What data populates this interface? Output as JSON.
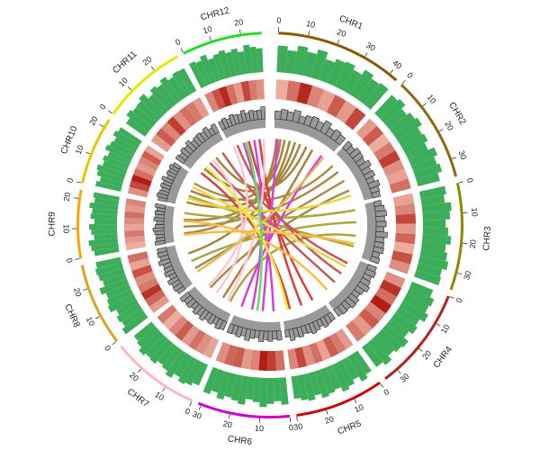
{
  "chart_data": {
    "type": "circos",
    "chromosomes": [
      {
        "name": "CHR1",
        "color": "#8b5a00",
        "length": 43,
        "ticks": [
          0,
          10,
          20,
          30,
          40
        ],
        "hist": [
          0.82,
          0.7,
          0.88,
          0.75,
          0.9,
          0.68,
          0.8,
          0.85,
          0.72,
          0.9,
          0.78,
          0.84
        ],
        "heat": [
          0.2,
          0.5,
          0.85,
          0.4,
          0.25,
          0.6,
          0.3,
          0.7
        ],
        "gray": [
          0.55,
          0.7,
          0.6,
          0.8,
          0.5,
          0.65,
          0.75,
          0.6,
          0.85,
          0.55,
          0.7,
          0.6
        ]
      },
      {
        "name": "CHR2",
        "color": "#8b6914",
        "length": 36,
        "ticks": [
          0,
          10,
          20,
          30
        ],
        "hist": [
          0.78,
          0.86,
          0.7,
          0.82,
          0.9,
          0.74,
          0.8,
          0.68,
          0.88,
          0.76,
          0.84,
          0.7
        ],
        "heat": [
          0.3,
          0.6,
          0.2,
          0.45,
          0.75,
          0.35,
          0.25,
          0.5
        ],
        "gray": [
          0.6,
          0.5,
          0.7,
          0.65,
          0.55,
          0.8,
          0.6,
          0.7,
          0.5,
          0.75,
          0.6,
          0.55
        ]
      },
      {
        "name": "CHR3",
        "color": "#8b8b00",
        "length": 36,
        "ticks": [
          0,
          10,
          20,
          30
        ],
        "hist": [
          0.8,
          0.72,
          0.9,
          0.84,
          0.7,
          0.78,
          0.88,
          0.74,
          0.82,
          0.9,
          0.76,
          0.8
        ],
        "heat": [
          0.25,
          0.4,
          0.7,
          0.3,
          0.55,
          0.2,
          0.65,
          0.35
        ],
        "gray": [
          0.5,
          0.65,
          0.75,
          0.6,
          0.7,
          0.55,
          0.8,
          0.6,
          0.65,
          0.7,
          0.5,
          0.6
        ]
      },
      {
        "name": "CHR4",
        "color": "#b22222",
        "length": 35,
        "ticks": [
          0,
          10,
          20,
          30
        ],
        "hist": [
          0.7,
          0.84,
          0.78,
          0.9,
          0.74,
          0.82,
          0.68,
          0.86,
          0.8,
          0.72,
          0.88,
          0.76
        ],
        "heat": [
          0.35,
          0.8,
          0.5,
          0.9,
          0.4,
          0.6,
          0.3,
          0.45
        ],
        "gray": [
          0.6,
          0.7,
          0.55,
          0.65,
          0.8,
          0.6,
          0.5,
          0.7,
          0.75,
          0.6,
          0.65,
          0.55
        ]
      },
      {
        "name": "CHR5",
        "color": "#cd0000",
        "length": 30,
        "ticks": [
          0,
          10,
          20,
          30
        ],
        "hist": [
          0.76,
          0.88,
          0.7,
          0.82,
          0.9,
          0.74,
          0.8,
          0.86,
          0.72,
          0.84,
          0.78,
          0.7
        ],
        "heat": [
          0.3,
          0.45,
          0.6,
          0.25,
          0.5,
          0.35,
          0.7,
          0.4
        ],
        "gray": [
          0.55,
          0.6,
          0.7,
          0.5,
          0.65,
          0.75,
          0.6,
          0.55,
          0.7,
          0.6,
          0.8,
          0.5
        ]
      },
      {
        "name": "CHR6",
        "color": "#cc00cc",
        "length": 31,
        "ticks": [
          0,
          10,
          20,
          30
        ],
        "hist": [
          0.84,
          0.72,
          0.8,
          0.9,
          0.76,
          0.7,
          0.88,
          0.8,
          0.74,
          0.86,
          0.7,
          0.82
        ],
        "heat": [
          0.5,
          0.75,
          0.9,
          0.4,
          0.3,
          0.6,
          0.55,
          0.35
        ],
        "gray": [
          0.65,
          0.55,
          0.7,
          0.6,
          0.75,
          0.5,
          0.6,
          0.8,
          0.55,
          0.7,
          0.6,
          0.65
        ]
      },
      {
        "name": "CHR7",
        "color": "#ffb6c1",
        "length": 30,
        "ticks": [
          0,
          10,
          20
        ],
        "hist": [
          0.7,
          0.8,
          0.86,
          0.74,
          0.9,
          0.78,
          0.72,
          0.84,
          0.8,
          0.88,
          0.76,
          0.7
        ],
        "heat": [
          0.25,
          0.35,
          0.5,
          0.3,
          0.6,
          0.4,
          0.2,
          0.45
        ],
        "gray": [
          0.6,
          0.7,
          0.5,
          0.65,
          0.55,
          0.75,
          0.6,
          0.7,
          0.5,
          0.65,
          0.6,
          0.7
        ]
      },
      {
        "name": "CHR8",
        "color": "#daa520",
        "length": 28,
        "ticks": [
          0,
          10,
          20
        ],
        "hist": [
          0.86,
          0.74,
          0.8,
          0.7,
          0.88,
          0.82,
          0.76,
          0.9,
          0.72,
          0.8,
          0.84,
          0.78
        ],
        "heat": [
          0.3,
          0.55,
          0.8,
          0.45,
          0.35,
          0.65,
          0.25,
          0.5
        ],
        "gray": [
          0.55,
          0.65,
          0.6,
          0.75,
          0.5,
          0.7,
          0.6,
          0.55,
          0.8,
          0.6,
          0.7,
          0.65
        ]
      },
      {
        "name": "CHR9",
        "color": "#ffa500",
        "length": 23,
        "ticks": [
          0,
          10,
          20
        ],
        "hist": [
          0.76,
          0.84,
          0.9,
          0.72,
          0.8,
          0.86,
          0.7,
          0.82,
          0.78,
          0.88,
          0.74,
          0.8
        ],
        "heat": [
          0.2,
          0.3,
          0.45,
          0.25,
          0.35,
          0.5,
          0.3,
          0.4
        ],
        "gray": [
          0.7,
          0.6,
          0.55,
          0.65,
          0.75,
          0.6,
          0.5,
          0.7,
          0.6,
          0.65,
          0.55,
          0.7
        ]
      },
      {
        "name": "CHR10",
        "color": "#e6c800",
        "length": 23,
        "ticks": [
          0,
          10,
          20
        ],
        "hist": [
          0.8,
          0.7,
          0.84,
          0.9,
          0.76,
          0.82,
          0.72,
          0.88,
          0.8,
          0.74,
          0.86,
          0.78
        ],
        "heat": [
          0.35,
          0.7,
          0.9,
          0.5,
          0.3,
          0.4,
          0.6,
          0.25
        ],
        "gray": [
          0.6,
          0.75,
          0.65,
          0.55,
          0.7,
          0.6,
          0.8,
          0.5,
          0.65,
          0.6,
          0.7,
          0.55
        ]
      },
      {
        "name": "CHR11",
        "color": "#e8e800",
        "length": 29,
        "ticks": [
          0,
          10,
          20
        ],
        "hist": [
          0.72,
          0.86,
          0.78,
          0.8,
          0.9,
          0.7,
          0.84,
          0.76,
          0.88,
          0.74,
          0.82,
          0.8
        ],
        "heat": [
          0.3,
          0.6,
          0.4,
          0.75,
          0.35,
          0.5,
          0.45,
          0.3
        ],
        "gray": [
          0.65,
          0.55,
          0.7,
          0.6,
          0.8,
          0.55,
          0.65,
          0.7,
          0.6,
          0.75,
          0.5,
          0.65
        ]
      },
      {
        "name": "CHR12",
        "color": "#22dd22",
        "length": 27,
        "ticks": [
          0,
          10,
          20
        ],
        "hist": [
          0.84,
          0.78,
          0.9,
          0.72,
          0.8,
          0.86,
          0.76,
          0.82,
          0.7,
          0.88,
          0.8,
          0.74
        ],
        "heat": [
          0.4,
          0.65,
          0.85,
          0.5,
          0.3,
          0.7,
          0.45,
          0.35
        ],
        "gray": [
          0.6,
          0.7,
          0.55,
          0.75,
          0.65,
          0.6,
          0.8,
          0.55,
          0.7,
          0.6,
          0.65,
          0.85
        ]
      }
    ],
    "links": [
      [
        0,
        2,
        8,
        5
      ],
      [
        0,
        5,
        9,
        12
      ],
      [
        0,
        8,
        10,
        6
      ],
      [
        0,
        12,
        7,
        20
      ],
      [
        0,
        16,
        8,
        15
      ],
      [
        0,
        20,
        9,
        3
      ],
      [
        0,
        25,
        10,
        18
      ],
      [
        0,
        30,
        6,
        10
      ],
      [
        1,
        4,
        9,
        18
      ],
      [
        1,
        10,
        8,
        10
      ],
      [
        1,
        18,
        7,
        8
      ],
      [
        1,
        26,
        6,
        22
      ],
      [
        2,
        3,
        8,
        20
      ],
      [
        2,
        12,
        7,
        14
      ],
      [
        2,
        22,
        6,
        4
      ],
      [
        2,
        30,
        9,
        8
      ],
      [
        3,
        5,
        10,
        24
      ],
      [
        3,
        14,
        11,
        5
      ],
      [
        3,
        22,
        10,
        12
      ],
      [
        4,
        6,
        11,
        14
      ],
      [
        4,
        15,
        11,
        22
      ],
      [
        4,
        24,
        10,
        2
      ],
      [
        5,
        4,
        11,
        10
      ],
      [
        5,
        12,
        0,
        3
      ],
      [
        5,
        20,
        11,
        18
      ],
      [
        5,
        28,
        0,
        38
      ],
      [
        6,
        6,
        11,
        25
      ],
      [
        6,
        16,
        10,
        15
      ],
      [
        6,
        24,
        11,
        2
      ],
      [
        7,
        5,
        0,
        40
      ],
      [
        8,
        4,
        2,
        28
      ],
      [
        8,
        14,
        3,
        30
      ],
      [
        9,
        6,
        1,
        30
      ],
      [
        9,
        15,
        3,
        8
      ],
      [
        10,
        8,
        4,
        26
      ],
      [
        11,
        12,
        5,
        16
      ]
    ]
  }
}
